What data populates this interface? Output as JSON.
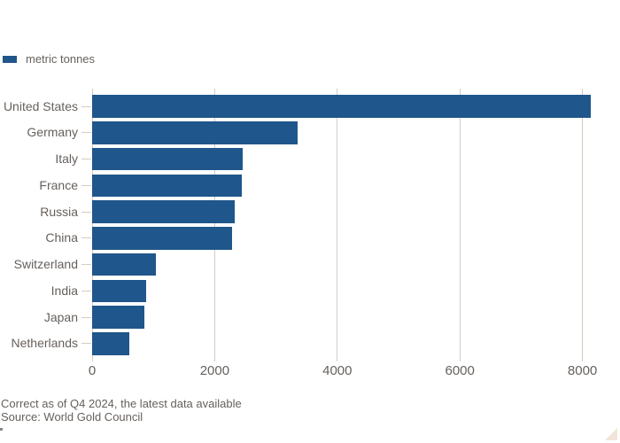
{
  "colors": {
    "background": "#ffffff",
    "bar": "#1f568b",
    "grid": "#d5ccc2",
    "text": "#66605c",
    "ft_triangle": "#f2e5d8",
    "artifact": "#8a8580"
  },
  "legend": {
    "label": "metric tonnes"
  },
  "chart_data": {
    "type": "bar",
    "orientation": "horizontal",
    "title": "",
    "unit": "metric tonnes",
    "categories": [
      "United States",
      "Germany",
      "Italy",
      "France",
      "Russia",
      "China",
      "Switzerland",
      "India",
      "Japan",
      "Netherlands"
    ],
    "values": [
      8133,
      3352,
      2452,
      2437,
      2333,
      2280,
      1040,
      876,
      846,
      613
    ],
    "xlim": [
      0,
      8000
    ],
    "x_ticks": [
      0,
      2000,
      4000,
      6000,
      8000
    ],
    "grid": "vertical",
    "legend_entries": [
      "metric tonnes"
    ],
    "legend_position": "top-left",
    "bars_sorted": "descending"
  },
  "footer": {
    "note": "Correct as of Q4 2024, the latest data available",
    "source": "Source: World Gold Council"
  }
}
